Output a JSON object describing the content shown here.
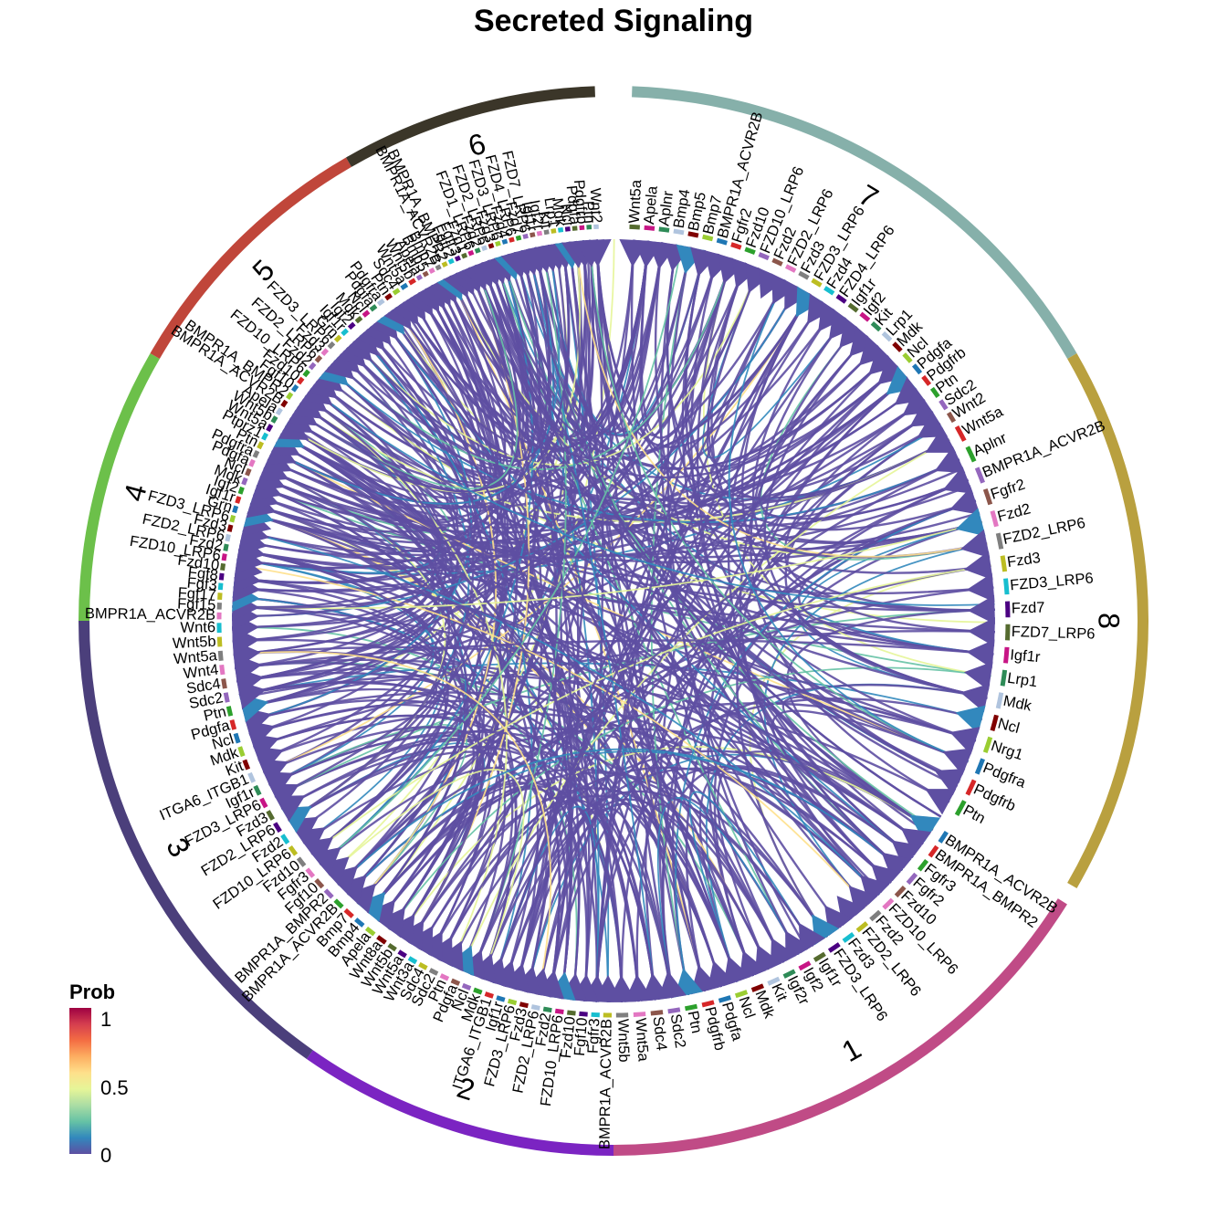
{
  "diagram": {
    "type": "chord",
    "title": "Secreted Signaling",
    "sectors": [
      {
        "id": "1",
        "color": "#c04b86",
        "labels": [
          "BMPR1A_ACVR2B",
          "BMPR1A_BMPR2",
          "Fgfr3",
          "Fgfr2",
          "Fzd10",
          "FZD10_LRP6",
          "Fzd2",
          "FZD2_LRP6",
          "Fzd3",
          "FZD3_LRP6",
          "Igf1r",
          "Igf2",
          "Igf2r",
          "Kit",
          "Mdk",
          "Ncl",
          "Pdgfa",
          "Pdgfrb",
          "Ptn",
          "Sdc2",
          "Sdc4",
          "Wnt5a",
          "Wnt5b"
        ]
      },
      {
        "id": "2",
        "color": "#7b24c2",
        "labels": [
          "BMPR1A_ACVR2B",
          "Fgfr3",
          "Fgf10",
          "Fzd10",
          "FZD10_LRP6",
          "Fzd2",
          "FZD2_LRP6",
          "Fzd3",
          "FZD3_LRP6",
          "Igf1r",
          "ITGA6_ITGB1",
          "Mdk",
          "Ncl",
          "Pdgfa",
          "Ptn",
          "Sdc2",
          "Sdc4",
          "Wnt3a",
          "Wnt5a",
          "Wnt5b"
        ]
      },
      {
        "id": "3",
        "color": "#4b3f7b",
        "labels": [
          "Wnt8a",
          "Apela",
          "Bmp4",
          "Bmp7",
          "BMPR1A_ACVR2B",
          "BMPR1A_BMPR2",
          "Fgf10",
          "Fgfr3",
          "Fzd10",
          "FZD10_LRP6",
          "Fzd2",
          "FZD2_LRP6",
          "Fzd3",
          "FZD3_LRP6",
          "Igf1r",
          "ITGA6_ITGB1",
          "Kit",
          "Mdk",
          "Ncl",
          "Pdgfa",
          "Ptn",
          "Sdc2",
          "Sdc4",
          "Wnt4",
          "Wnt5a",
          "Wnt5b",
          "Wnt6"
        ]
      },
      {
        "id": "4",
        "color": "#6cc04a",
        "labels": [
          "BMPR1A_ACVR2B",
          "Fgf15",
          "Fgf17",
          "Fgf3",
          "Fgf8",
          "Fzd10",
          "FZD10_LRP6",
          "Fzd2",
          "FZD2_LRP6",
          "Fzd3",
          "FZD3_LRP6",
          "Grn",
          "Igf1r",
          "Igf2",
          "Mdk",
          "Ncl",
          "Pdgfa",
          "Pdgfra",
          "Ptn",
          "Ptprz1",
          "Wnt5a"
        ]
      },
      {
        "id": "5",
        "color": "#c0463a",
        "labels": [
          "Wnt5b",
          "Apela",
          "BMPR1A_ACVR2B",
          "BMPR1A_BMPR2",
          "Fgf10",
          "Fzd10",
          "FZD10_LRP6",
          "Fzd2",
          "FZD2_LRP6",
          "Fzd3",
          "FZD3_LRP6",
          "Grn",
          "Igf1r",
          "Igf2",
          "Mdk",
          "Ncl",
          "Pdgfa",
          "Pdgfra",
          "Ptn",
          "Sdc4",
          "Wnt5a",
          "Wnt5b"
        ]
      },
      {
        "id": "6",
        "color": "#3b3629",
        "labels": [
          "Apela",
          "Bmp5",
          "Bmp7",
          "BMPR1A_ACVR2B",
          "BMPR1A_BMPR2",
          "Fgfr2",
          "Fgfr3",
          "Fzd1",
          "FZD1_LRP6",
          "Fzd2",
          "FZD2_LRP6",
          "Fzd3",
          "FZD3_LRP6",
          "Fzd4",
          "FZD4_LRP6",
          "Fzd7",
          "FZD7_LRP6",
          "Igf1r",
          "Igf2r",
          "Kit",
          "Lrp1",
          "Mdk",
          "Ncl",
          "Pdgfa",
          "Pdgfrb",
          "Ptn",
          "Wnt2"
        ]
      },
      {
        "id": "7",
        "color": "#86b0aa",
        "labels": [
          "Wnt5a",
          "Apela",
          "Aplnr",
          "Bmp4",
          "Bmp5",
          "Bmp7",
          "BMPR1A_ACVR2B",
          "Fgfr2",
          "Fzd10",
          "FZD10_LRP6",
          "Fzd2",
          "FZD2_LRP6",
          "Fzd3",
          "FZD3_LRP6",
          "Fzd4",
          "FZD4_LRP6",
          "Igf1r",
          "Igf2",
          "Kit",
          "Lrp1",
          "Mdk",
          "Ncl",
          "Pdgfa",
          "Pdgfrb",
          "Ptn",
          "Sdc2",
          "Wnt2"
        ]
      },
      {
        "id": "8",
        "color": "#b9a03f",
        "labels": [
          "Wnt5a",
          "Aplnr",
          "BMPR1A_ACVR2B",
          "Fgfr2",
          "Fzd2",
          "FZD2_LRP6",
          "Fzd3",
          "FZD3_LRP6",
          "Fzd7",
          "FZD7_LRP6",
          "Igf1r",
          "Lrp1",
          "Mdk",
          "Ncl",
          "Nrg1",
          "Pdgfra",
          "Pdgfrb",
          "Ptn"
        ]
      }
    ],
    "legend": {
      "title": "Prob",
      "ticks": [
        "1",
        "0.5",
        "0"
      ],
      "colors": [
        "#5e4fa2",
        "#3288bd",
        "#66c2a5",
        "#abdda4",
        "#e6f598",
        "#fee08b",
        "#fdae61",
        "#f46d43",
        "#d53e4f",
        "#9e0142"
      ]
    }
  }
}
